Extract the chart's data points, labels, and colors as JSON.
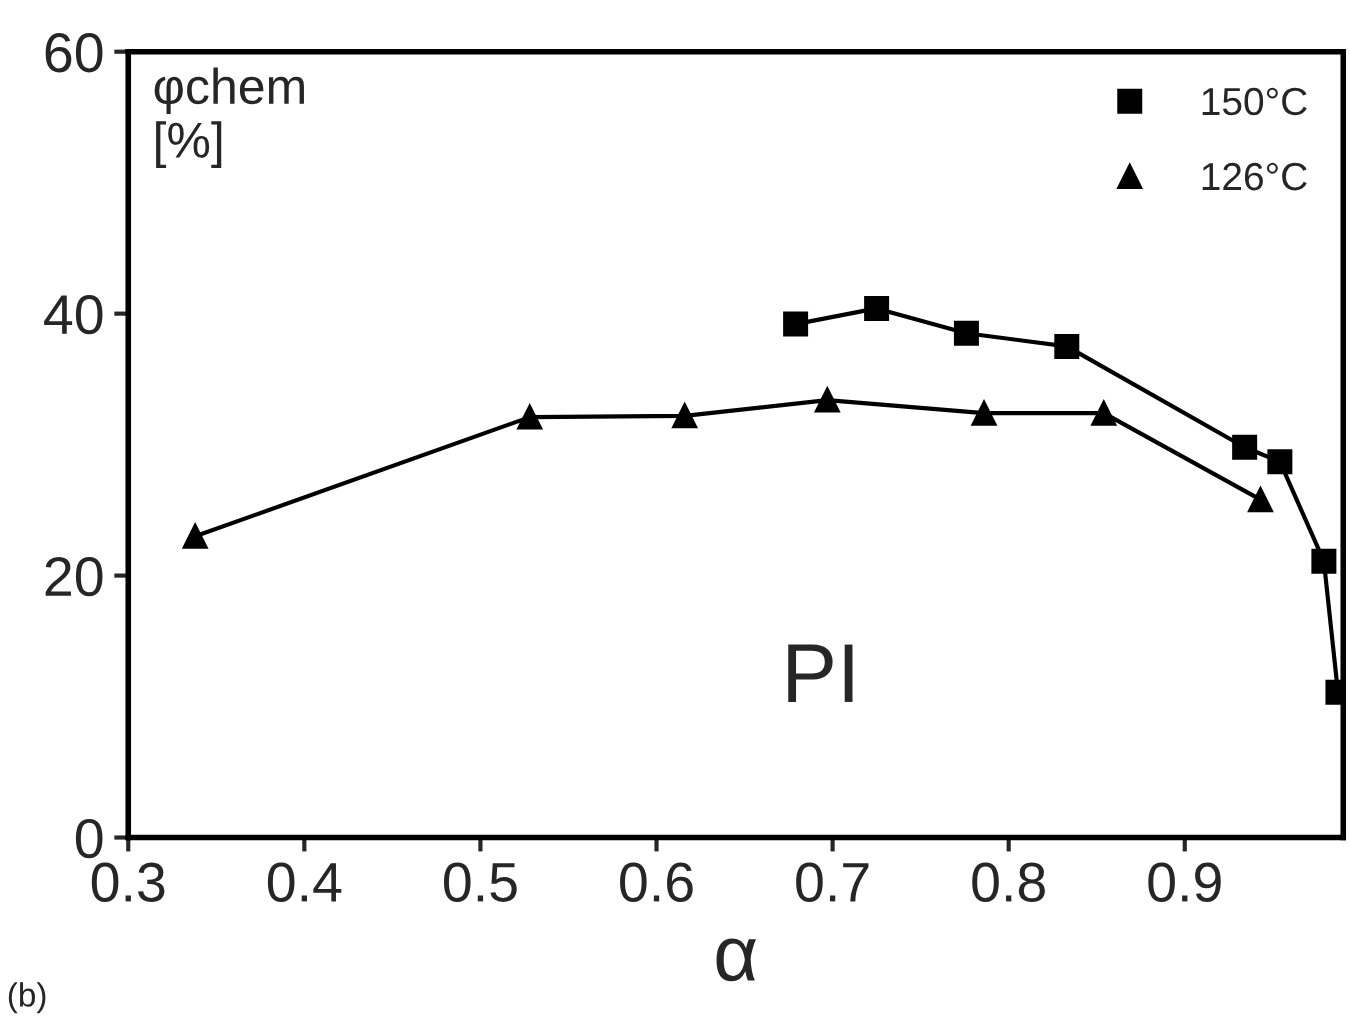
{
  "chart_data": {
    "type": "line",
    "ylabel": "φchem\n[%]",
    "xlabel": "α",
    "annotations": [
      "PI",
      "(b)"
    ],
    "series": [
      {
        "name": "150°C",
        "color": "#000000",
        "marker": "square",
        "x": [
          0.679,
          0.725,
          0.776,
          0.833,
          0.934,
          0.954,
          0.979,
          0.987
        ],
        "values": [
          39.2,
          40.4,
          38.5,
          37.5,
          29.8,
          28.7,
          21.1,
          11.1
        ]
      },
      {
        "name": "126°C",
        "color": "#000000",
        "marker": "triangle",
        "x": [
          0.338,
          0.528,
          0.616,
          0.697,
          0.786,
          0.854,
          0.943
        ],
        "values": [
          23.0,
          32.1,
          32.2,
          33.4,
          32.4,
          32.4,
          25.8
        ]
      }
    ],
    "xlim": [
      0.3,
      0.99
    ],
    "xticks": [
      0.3,
      0.4,
      0.5,
      0.6,
      0.7,
      0.8,
      0.9
    ],
    "ylim": [
      0,
      60
    ],
    "yticks": [
      0,
      20,
      40,
      60
    ],
    "grid": false,
    "legend": "top right",
    "line_style": "solid"
  }
}
